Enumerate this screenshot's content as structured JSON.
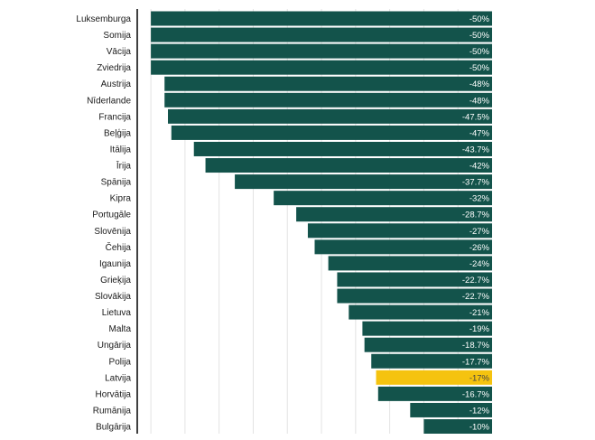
{
  "chart_data": {
    "type": "bar",
    "orientation": "horizontal",
    "title": "",
    "xlabel": "",
    "ylabel": "",
    "xlim": [
      -52,
      0
    ],
    "grid": true,
    "legend": "none",
    "categories": [
      "Luksemburga",
      "Somija",
      "Vācija",
      "Zviedrija",
      "Austrija",
      "Nīderlande",
      "Francija",
      "Beļģija",
      "Itālija",
      "Īrija",
      "Spānija",
      "Kipra",
      "Portugāle",
      "Slovēnija",
      "Čehija",
      "Igaunija",
      "Grieķija",
      "Slovākija",
      "Lietuva",
      "Malta",
      "Ungārija",
      "Polija",
      "Latvija",
      "Horvātija",
      "Rumānija",
      "Bulgārija"
    ],
    "values": [
      -50,
      -50,
      -50,
      -50,
      -48,
      -48,
      -47.5,
      -47,
      -43.7,
      -42,
      -37.7,
      -32,
      -28.7,
      -27,
      -26,
      -24,
      -22.7,
      -22.7,
      -21,
      -19,
      -18.7,
      -17.7,
      -17,
      -16.7,
      -12,
      -10
    ],
    "value_labels": [
      "-50%",
      "-50%",
      "-50%",
      "-50%",
      "-48%",
      "-48%",
      "-47.5%",
      "-47%",
      "-43.7%",
      "-42%",
      "-37.7%",
      "-32%",
      "-28.7%",
      "-27%",
      "-26%",
      "-24%",
      "-22.7%",
      "-22.7%",
      "-21%",
      "-19%",
      "-18.7%",
      "-17.7%",
      "-17%",
      "-16.7%",
      "-12%",
      "-10%"
    ],
    "highlight": "Latvija",
    "colors": {
      "bar": "#13534b",
      "highlight": "#f5c30f",
      "label_on_bar": "#ffffff",
      "label_on_highlight": "#444444",
      "grid": "#e3e3e3",
      "axis": "#000000"
    }
  }
}
